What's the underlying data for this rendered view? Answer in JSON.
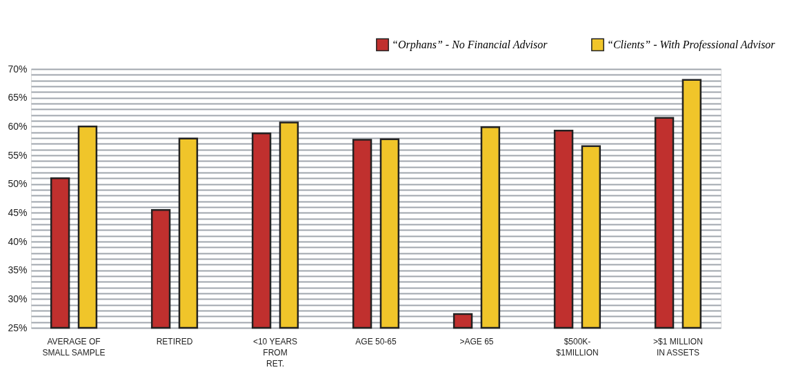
{
  "chart_data": {
    "type": "bar",
    "categories": [
      "AVERAGE OF\nSMALL SAMPLE",
      "RETIRED",
      "<10 YEARS\nFROM\nRET.",
      "AGE 50-65",
      ">AGE 65",
      "$500K-\n$1MILLION",
      ">$1 MILLION\nIN ASSETS"
    ],
    "series": [
      {
        "name": "“Orphans” - No Financial Advisor",
        "color": "#c0302e",
        "values": [
          51,
          45.5,
          58.8,
          57.7,
          27.4,
          59.3,
          61.5
        ]
      },
      {
        "name": "“Clients” - With Professional Advisor",
        "color": "#f0c52a",
        "values": [
          60,
          57.9,
          60.7,
          57.8,
          59.9,
          56.6,
          68.1
        ]
      }
    ],
    "ylim": [
      25,
      70
    ],
    "yticks": [
      {
        "value": 25,
        "label": "25%"
      },
      {
        "value": 26,
        "label": null
      },
      {
        "value": 27,
        "label": null
      },
      {
        "value": 28,
        "label": null
      },
      {
        "value": 29,
        "label": null
      },
      {
        "value": 30,
        "label": "30%"
      },
      {
        "value": 31,
        "label": null
      },
      {
        "value": 32,
        "label": null
      },
      {
        "value": 33,
        "label": null
      },
      {
        "value": 34,
        "label": null
      },
      {
        "value": 35,
        "label": "35%"
      },
      {
        "value": 36,
        "label": null
      },
      {
        "value": 37,
        "label": null
      },
      {
        "value": 38,
        "label": null
      },
      {
        "value": 39,
        "label": null
      },
      {
        "value": 40,
        "label": "40%"
      },
      {
        "value": 41,
        "label": null
      },
      {
        "value": 42,
        "label": null
      },
      {
        "value": 43,
        "label": null
      },
      {
        "value": 44,
        "label": null
      },
      {
        "value": 45,
        "label": "45%"
      },
      {
        "value": 46,
        "label": null
      },
      {
        "value": 47,
        "label": null
      },
      {
        "value": 48,
        "label": null
      },
      {
        "value": 49,
        "label": null
      },
      {
        "value": 50,
        "label": "50%"
      },
      {
        "value": 51,
        "label": null
      },
      {
        "value": 52,
        "label": null
      },
      {
        "value": 53,
        "label": null
      },
      {
        "value": 54,
        "label": null
      },
      {
        "value": 55,
        "label": "55%"
      },
      {
        "value": 56,
        "label": null
      },
      {
        "value": 57,
        "label": null
      },
      {
        "value": 58,
        "label": null
      },
      {
        "value": 59,
        "label": null
      },
      {
        "value": 60,
        "label": "60%"
      },
      {
        "value": 61,
        "label": null
      },
      {
        "value": 62,
        "label": null
      },
      {
        "value": 63,
        "label": null
      },
      {
        "value": 64,
        "label": null
      },
      {
        "value": 65,
        "label": "65%"
      },
      {
        "value": 66,
        "label": null
      },
      {
        "value": 67,
        "label": null
      },
      {
        "value": 68,
        "label": null
      },
      {
        "value": 69,
        "label": null
      },
      {
        "value": 70,
        "label": "70%"
      }
    ],
    "grid": "y",
    "legend": "top right"
  }
}
